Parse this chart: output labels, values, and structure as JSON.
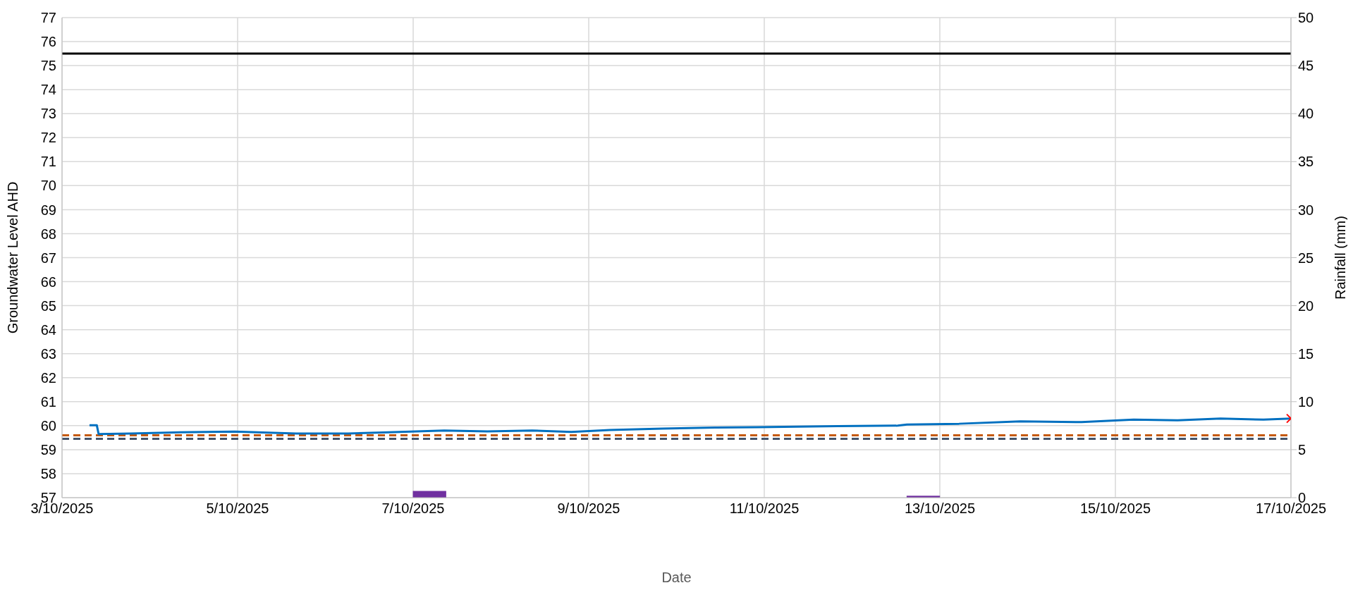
{
  "chart_data": {
    "type": "line",
    "xlabel": "Date",
    "ylabel": "Groundwater Level AHD",
    "y2label": "Rainfall (mm)",
    "xlim": [
      "2025-10-03",
      "2025-10-17"
    ],
    "xticks": [
      {
        "value": "2025-10-03",
        "label": "3/10/2025"
      },
      {
        "value": "2025-10-05",
        "label": "5/10/2025"
      },
      {
        "value": "2025-10-07",
        "label": "7/10/2025"
      },
      {
        "value": "2025-10-09",
        "label": "9/10/2025"
      },
      {
        "value": "2025-10-11",
        "label": "11/10/2025"
      },
      {
        "value": "2025-10-13",
        "label": "13/10/2025"
      },
      {
        "value": "2025-10-15",
        "label": "15/10/2025"
      },
      {
        "value": "2025-10-17",
        "label": "17/10/2025"
      }
    ],
    "ylim": [
      57,
      77
    ],
    "yticks": [
      57,
      58,
      59,
      60,
      61,
      62,
      63,
      64,
      65,
      66,
      67,
      68,
      69,
      70,
      71,
      72,
      73,
      74,
      75,
      76,
      77
    ],
    "y2lim": [
      0,
      50
    ],
    "y2ticks": [
      0,
      5,
      10,
      15,
      20,
      25,
      30,
      35,
      40,
      45,
      50
    ],
    "grid": true,
    "legend": false,
    "marker": "none",
    "line_style": "solid",
    "series": [
      {
        "color": "#0070c0",
        "x": [
          "2025-10-03T07:30",
          "2025-10-03T09:30",
          "2025-10-03T10:00",
          "2025-10-03T18:45",
          "2025-10-04T06:30",
          "2025-10-04T23:15",
          "2025-10-05T16:00",
          "2025-10-06T06:15",
          "2025-10-06T15:45",
          "2025-10-07T08:30",
          "2025-10-07T20:15",
          "2025-10-08T08:30",
          "2025-10-08T19:15",
          "2025-10-09T05:45",
          "2025-10-09T20:15",
          "2025-10-10T10:30",
          "2025-10-10T22:15",
          "2025-10-11T20:00",
          "2025-10-12T12:30",
          "2025-10-12T15:00",
          "2025-10-13T05:15",
          "2025-10-13T22:00",
          "2025-10-14T14:45",
          "2025-10-15T05:00",
          "2025-10-15T17:00",
          "2025-10-16T04:45",
          "2025-10-16T16:30",
          "2025-10-17T00:00"
        ],
        "values": [
          60.02,
          60.02,
          59.65,
          59.67,
          59.72,
          59.75,
          59.67,
          59.67,
          59.72,
          59.8,
          59.76,
          59.8,
          59.74,
          59.82,
          59.88,
          59.92,
          59.94,
          59.98,
          60.0,
          60.05,
          60.08,
          60.18,
          60.15,
          60.25,
          60.22,
          60.3,
          60.25,
          60.3
        ]
      },
      {
        "type": "bar",
        "axis": "y2",
        "color": "#7030a0",
        "x": [
          "2025-10-07T04:30",
          "2025-10-12T19:30"
        ],
        "values": [
          0.7,
          0.2
        ]
      },
      {
        "type": "scatter",
        "marker": "cross",
        "color": "#ff0000",
        "x": [
          "2025-10-17T00:00"
        ],
        "values": [
          60.3
        ]
      }
    ],
    "ref_lines": [
      {
        "axis": "y",
        "value": 75.5,
        "color": "#000000",
        "line_style": "solid"
      },
      {
        "axis": "y",
        "value": 59.6,
        "color": "#c55a11",
        "line_style": "dashed"
      },
      {
        "axis": "y",
        "value": 59.45,
        "color": "#44546a",
        "line_style": "dashed"
      }
    ]
  }
}
